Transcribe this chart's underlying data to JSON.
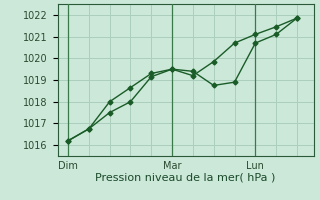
{
  "bg_color": "#cce8d8",
  "grid_color": "#aacfbc",
  "line_color": "#1a5c28",
  "line1_x": [
    0,
    1,
    2,
    3,
    4,
    5,
    6,
    7,
    8,
    9,
    10,
    11
  ],
  "line1_y": [
    1016.2,
    1016.75,
    1017.5,
    1018.0,
    1019.15,
    1019.5,
    1019.2,
    1019.85,
    1020.7,
    1021.1,
    1021.45,
    1021.85
  ],
  "line2_x": [
    0,
    1,
    2,
    3,
    4,
    5,
    6,
    7,
    8,
    9,
    10,
    11
  ],
  "line2_y": [
    1016.2,
    1016.75,
    1018.0,
    1018.65,
    1019.3,
    1019.5,
    1019.4,
    1018.75,
    1018.9,
    1020.7,
    1021.1,
    1021.85
  ],
  "ylim": [
    1015.5,
    1022.5
  ],
  "yticks": [
    1016,
    1017,
    1018,
    1019,
    1020,
    1021,
    1022
  ],
  "xtick_pos": [
    0,
    5,
    9
  ],
  "xlabels": [
    "Dim",
    "Mar",
    "Lun"
  ],
  "xlabel": "Pression niveau de la mer( hPa )",
  "xlabel_fontsize": 8,
  "tick_fontsize": 7,
  "vlines": [
    0,
    5,
    9
  ],
  "xlim": [
    -0.5,
    11.8
  ]
}
